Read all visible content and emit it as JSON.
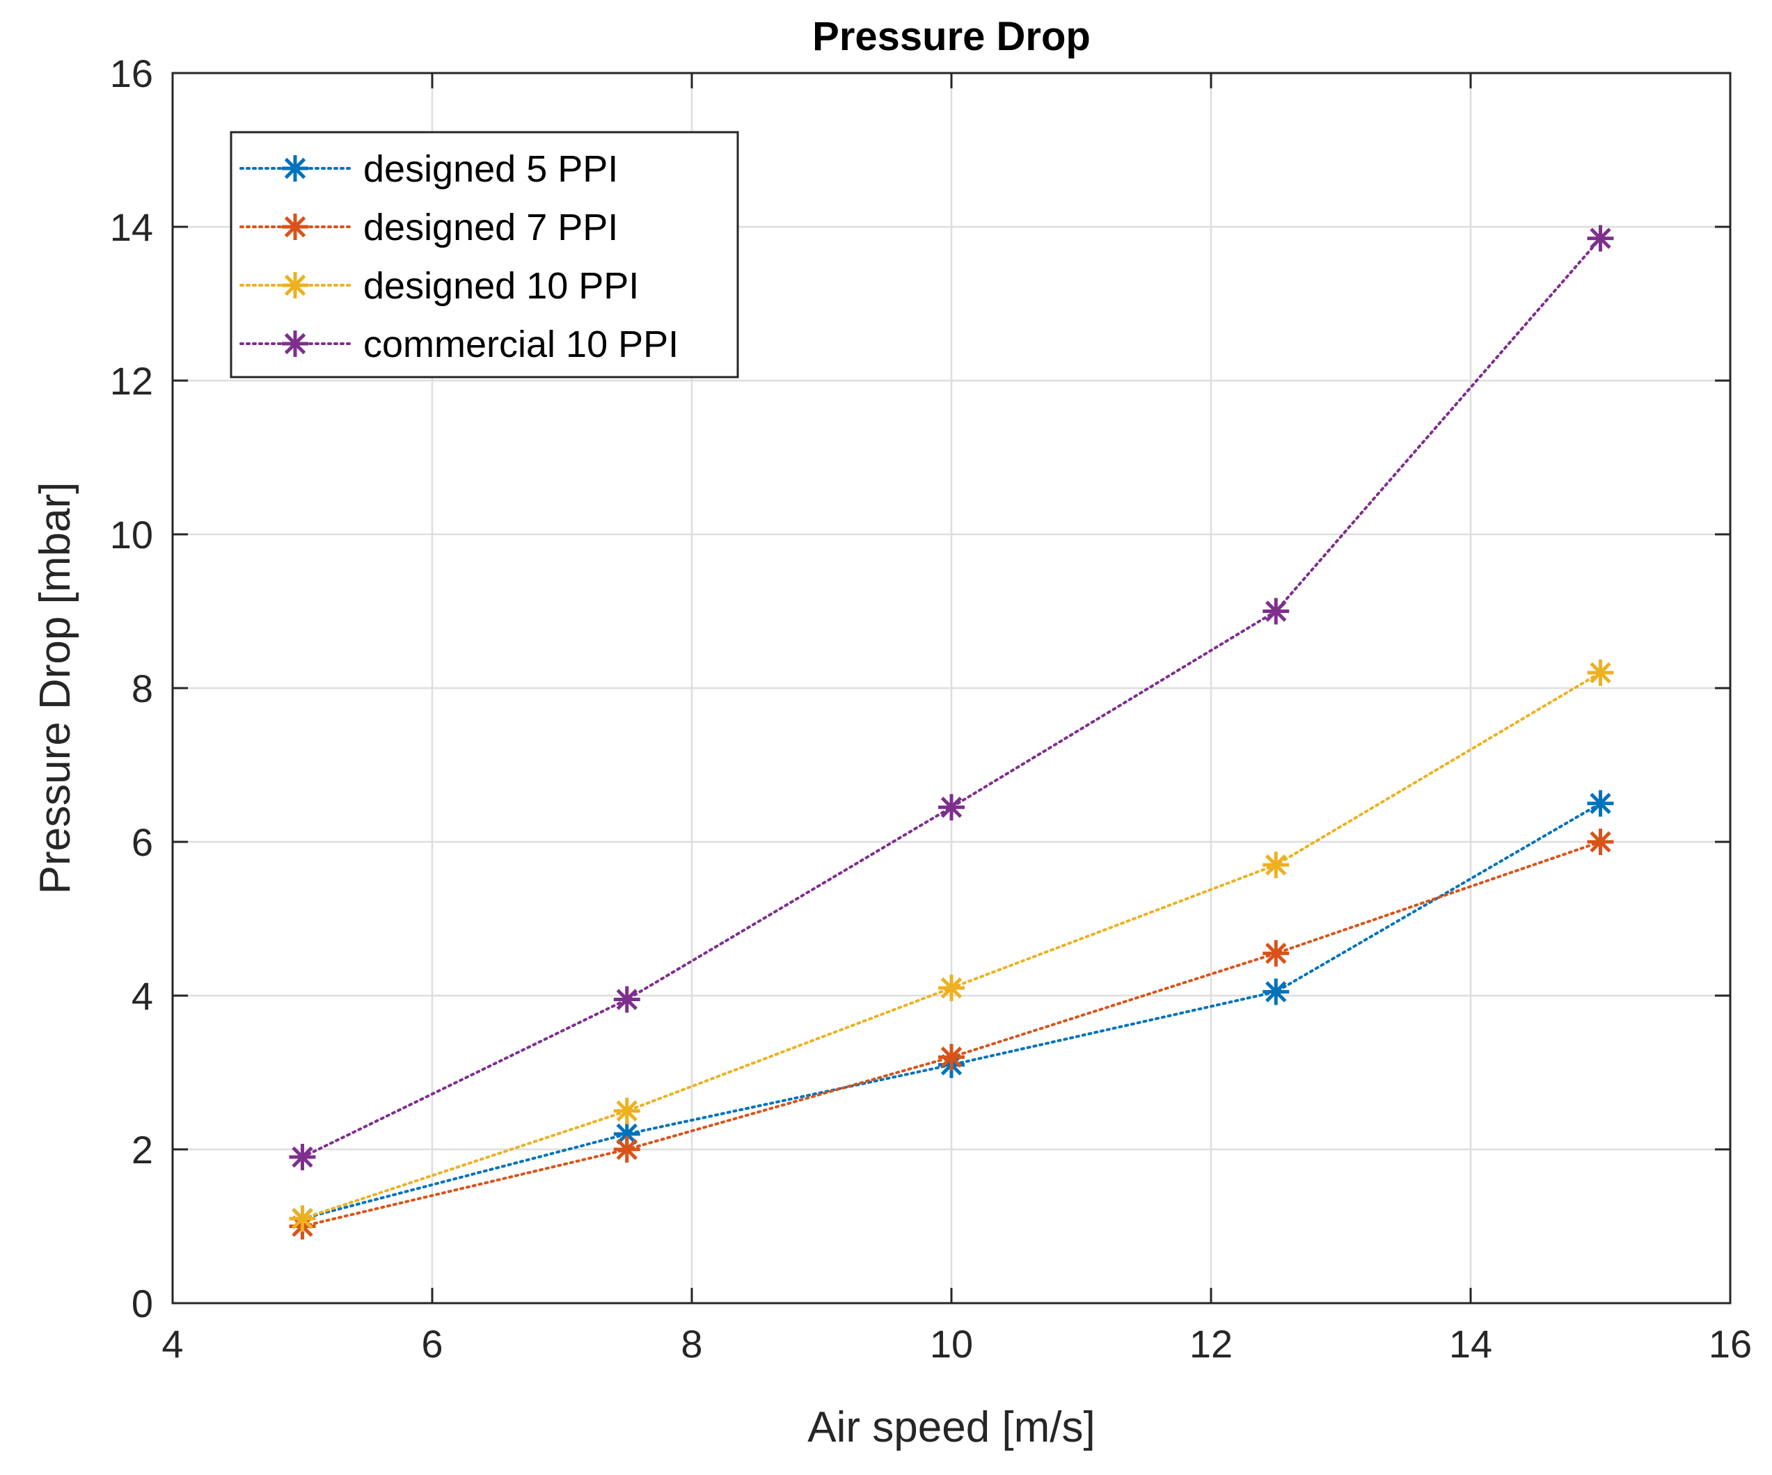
{
  "chart_data": {
    "type": "line",
    "title": "Pressure Drop",
    "xlabel": "Air speed [m/s]",
    "ylabel": "Pressure Drop [mbar]",
    "xlim": [
      4,
      16
    ],
    "ylim": [
      0,
      16
    ],
    "xticks": [
      4,
      6,
      8,
      10,
      12,
      14,
      16
    ],
    "yticks": [
      0,
      2,
      4,
      6,
      8,
      10,
      12,
      14,
      16
    ],
    "grid": true,
    "legend_position": "top-left",
    "x": [
      5,
      7.5,
      10,
      12.5,
      15
    ],
    "series": [
      {
        "name": "designed 5 PPI",
        "color": "#0072BD",
        "marker": "asterisk",
        "line": "dotted",
        "values": [
          1.1,
          2.2,
          3.1,
          4.05,
          6.5
        ]
      },
      {
        "name": "designed 7 PPI",
        "color": "#D95319",
        "marker": "asterisk",
        "line": "dotted",
        "values": [
          1.0,
          2.0,
          3.2,
          4.55,
          6.0
        ]
      },
      {
        "name": "designed 10 PPI",
        "color": "#EDB120",
        "marker": "asterisk",
        "line": "dotted",
        "values": [
          1.1,
          2.5,
          4.1,
          5.7,
          8.2
        ]
      },
      {
        "name": "commercial 10 PPI",
        "color": "#7E2F8E",
        "marker": "asterisk",
        "line": "dotted",
        "values": [
          1.9,
          3.95,
          6.45,
          9.0,
          13.85
        ]
      }
    ]
  }
}
